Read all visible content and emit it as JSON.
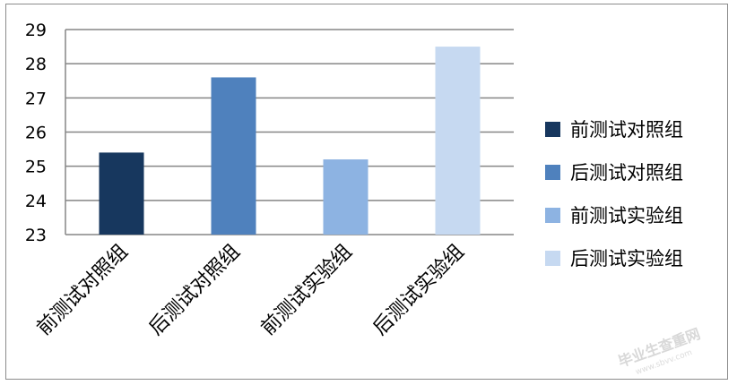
{
  "chart_data": {
    "type": "bar",
    "categories": [
      "前测试对照组",
      "后测试对照组",
      "前测试实验组",
      "后测试实验组"
    ],
    "values": [
      25.4,
      27.6,
      25.2,
      28.5
    ],
    "colors": [
      "#17375e",
      "#4f81bd",
      "#8db3e2",
      "#c6d9f1"
    ],
    "ylim": [
      23,
      29
    ],
    "yticks": [
      23,
      24,
      25,
      26,
      27,
      28,
      29
    ],
    "legend": [
      "前测试对照组",
      "后测试对照组",
      "前测试实验组",
      "后测试实验组"
    ],
    "legend_position": "right",
    "grid": true,
    "title": "",
    "xlabel": "",
    "ylabel": ""
  },
  "watermark": {
    "text": "毕业生查重网",
    "url": "www.sbvv.com"
  }
}
